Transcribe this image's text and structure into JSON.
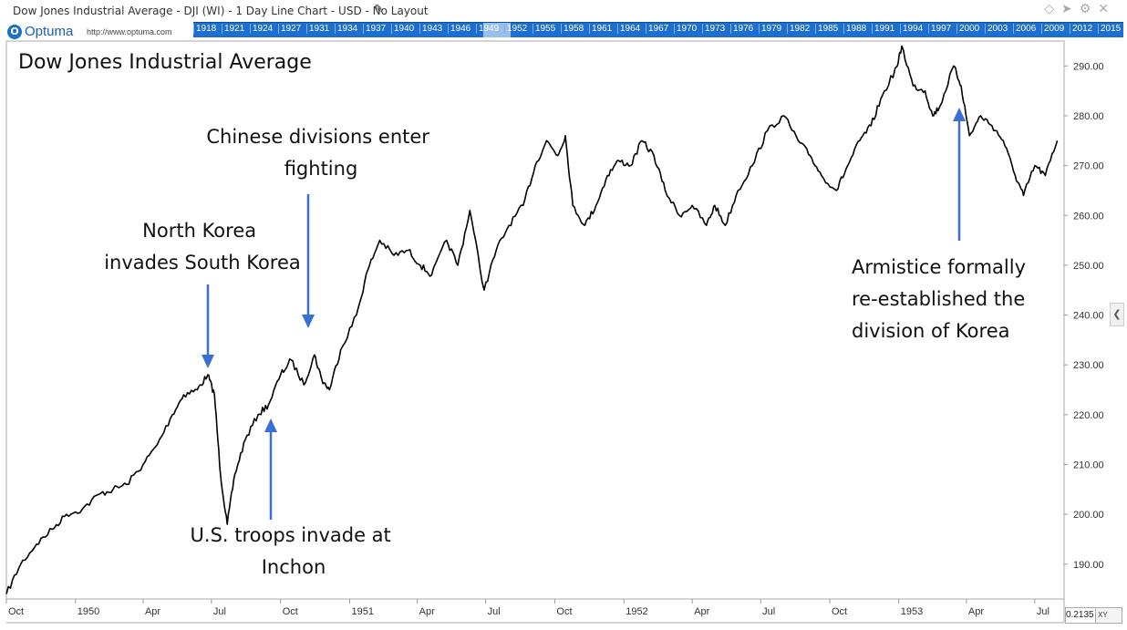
{
  "header": {
    "window_title": "Dow Jones Industrial Average - DJI (WI) - 1 Day Line Chart - USD - No Layout",
    "edit_icon": "pencil-icon",
    "toolbar_icons": [
      "diamond-icon",
      "pin-icon",
      "gear-icon",
      "close-icon"
    ]
  },
  "brand": {
    "logo_text": "Optuma",
    "url": "http://www.optuma.com"
  },
  "timeline": {
    "years": [
      "1918",
      "1921",
      "1924",
      "1927",
      "1931",
      "1934",
      "1937",
      "1940",
      "1943",
      "1946",
      "1949",
      "1952",
      "1955",
      "1958",
      "1961",
      "1964",
      "1967",
      "1970",
      "1973",
      "1976",
      "1979",
      "1982",
      "1985",
      "1988",
      "1991",
      "1994",
      "1997",
      "2000",
      "2003",
      "2006",
      "2009",
      "2012",
      "2015"
    ]
  },
  "footer": {
    "readout_value": "0.2135",
    "xy_label": "XY"
  },
  "colors": {
    "line": "#000000",
    "arrow": "#3a6fd8",
    "timeline": "#1c6fd0",
    "axis": "#aaaaaa"
  },
  "chart_data": {
    "type": "line",
    "title": "Dow Jones Industrial Average",
    "xlabel": "",
    "ylabel": "",
    "ylim": [
      183,
      295
    ],
    "grid": false,
    "y_ticks": [
      190,
      200,
      210,
      220,
      230,
      240,
      250,
      260,
      270,
      280,
      290
    ],
    "x_ticks": [
      {
        "date": "1949-10-01",
        "label": "Oct"
      },
      {
        "date": "1950-01-01",
        "label": "1950"
      },
      {
        "date": "1950-04-01",
        "label": "Apr"
      },
      {
        "date": "1950-07-01",
        "label": "Jul"
      },
      {
        "date": "1950-10-01",
        "label": "Oct"
      },
      {
        "date": "1951-01-01",
        "label": "1951"
      },
      {
        "date": "1951-04-01",
        "label": "Apr"
      },
      {
        "date": "1951-07-01",
        "label": "Jul"
      },
      {
        "date": "1951-10-01",
        "label": "Oct"
      },
      {
        "date": "1952-01-01",
        "label": "1952"
      },
      {
        "date": "1952-04-01",
        "label": "Apr"
      },
      {
        "date": "1952-07-01",
        "label": "Jul"
      },
      {
        "date": "1952-10-01",
        "label": "Oct"
      },
      {
        "date": "1953-01-01",
        "label": "1953"
      },
      {
        "date": "1953-04-01",
        "label": "Apr"
      },
      {
        "date": "1953-07-01",
        "label": "Jul"
      }
    ],
    "series": [
      {
        "x": [
          "1949-10-01",
          "1949-10-20",
          "1949-11-10",
          "1949-12-01",
          "1949-12-20",
          "1950-01-10",
          "1950-02-01",
          "1950-02-20",
          "1950-03-10",
          "1950-04-01",
          "1950-04-20",
          "1950-05-10",
          "1950-05-25",
          "1950-06-12",
          "1950-06-26",
          "1950-07-05",
          "1950-07-13",
          "1950-07-22",
          "1950-08-01",
          "1950-08-15",
          "1950-09-01",
          "1950-09-15",
          "1950-10-01",
          "1950-10-15",
          "1950-11-01",
          "1950-11-15",
          "1950-11-25",
          "1950-12-05",
          "1950-12-20",
          "1951-01-10",
          "1951-01-25",
          "1951-02-10",
          "1951-03-01",
          "1951-03-20",
          "1951-04-05",
          "1951-04-20",
          "1951-05-10",
          "1951-05-25",
          "1951-06-10",
          "1951-06-29",
          "1951-07-15",
          "1951-08-01",
          "1951-08-20",
          "1951-09-05",
          "1951-09-20",
          "1951-10-05",
          "1951-10-15",
          "1951-10-25",
          "1951-11-10",
          "1951-11-25",
          "1951-12-10",
          "1951-12-25",
          "1952-01-10",
          "1952-01-25",
          "1952-02-10",
          "1952-02-25",
          "1952-03-15",
          "1952-04-01",
          "1952-04-20",
          "1952-05-01",
          "1952-05-15",
          "1952-06-01",
          "1952-06-20",
          "1952-07-10",
          "1952-08-01",
          "1952-08-20",
          "1952-09-05",
          "1952-09-20",
          "1952-10-10",
          "1952-10-25",
          "1952-11-10",
          "1952-11-25",
          "1952-12-10",
          "1952-12-30",
          "1953-01-05",
          "1953-01-20",
          "1953-02-05",
          "1953-02-15",
          "1953-02-25",
          "1953-03-15",
          "1953-03-25",
          "1953-04-05",
          "1953-04-20",
          "1953-05-05",
          "1953-05-20",
          "1953-06-05",
          "1953-06-16",
          "1953-07-01",
          "1953-07-15",
          "1953-07-31"
        ],
        "values": [
          184,
          190,
          194,
          197,
          200,
          201,
          204,
          205,
          206,
          210,
          214,
          220,
          224,
          225,
          228,
          224,
          208,
          198,
          208,
          215,
          220,
          222,
          228,
          231,
          226,
          232,
          227,
          225,
          233,
          240,
          249,
          255,
          252,
          253,
          250,
          248,
          255,
          250,
          261,
          245,
          253,
          258,
          262,
          270,
          275,
          272,
          276,
          262,
          258,
          262,
          268,
          271,
          270,
          275,
          272,
          265,
          260,
          262,
          258,
          262,
          258,
          265,
          270,
          277,
          280,
          275,
          272,
          268,
          265,
          270,
          275,
          278,
          284,
          290,
          294,
          286,
          285,
          280,
          282,
          290,
          286,
          276,
          280,
          278,
          275,
          268,
          264,
          270,
          268,
          275
        ]
      }
    ],
    "annotations": [
      {
        "text": "North Korea invades South Korea",
        "date": "1950-06-26",
        "value": 228
      },
      {
        "text": "Chinese divisions enter fighting",
        "date": "1950-11-25",
        "value": 233
      },
      {
        "text": "U.S. troops invade at Inchon",
        "date": "1950-09-15",
        "value": 219
      },
      {
        "text": "Armistice formally re-established the division of Korea",
        "date": "1953-03-25",
        "value": 281
      }
    ]
  }
}
